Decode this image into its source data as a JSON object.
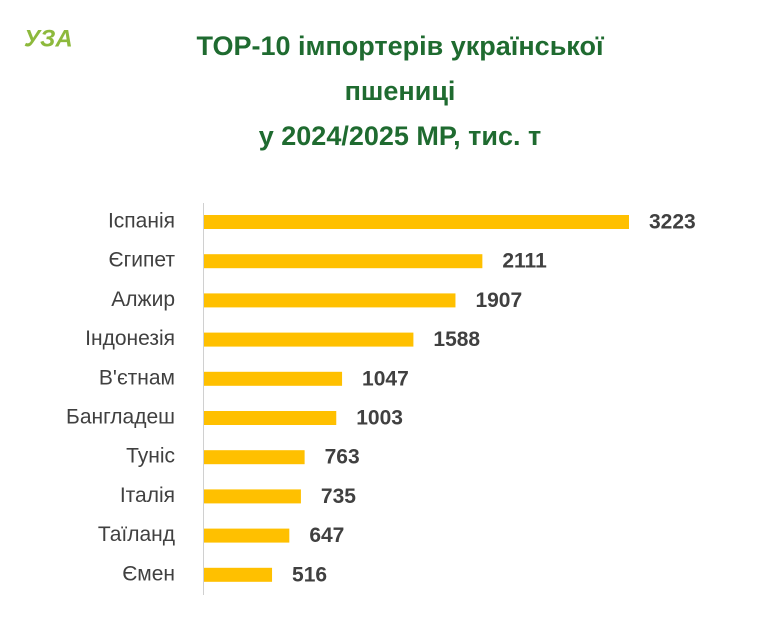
{
  "logo": "УЗА",
  "chart_data": {
    "type": "bar",
    "orientation": "horizontal",
    "title": [
      "TOP-10 імпортерів української",
      "пшениці",
      "у 2024/2025 МР, тис. т"
    ],
    "categories": [
      "Іспанія",
      "Єгипет",
      "Алжир",
      "Індонезія",
      "В'єтнам",
      "Бангладеш",
      "Туніс",
      "Італія",
      "Таїланд",
      "Ємен"
    ],
    "values": [
      3223,
      2111,
      1907,
      1588,
      1047,
      1003,
      763,
      735,
      647,
      516
    ],
    "color": "#ffc000"
  }
}
